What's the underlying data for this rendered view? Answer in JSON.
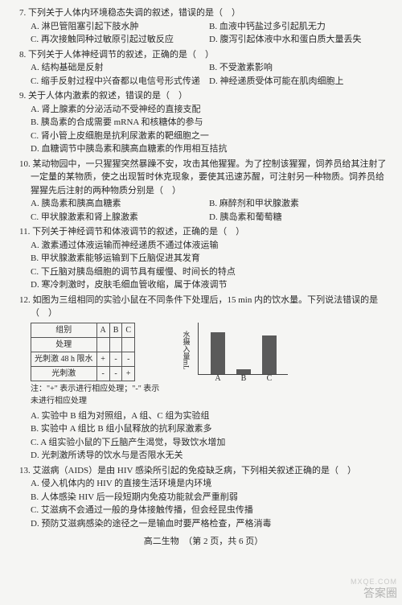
{
  "q7": {
    "stem": "7. 下列关于人体内环境稳态失调的叙述，错误的是（　）",
    "A": "A. 淋巴管阻塞引起下肢水肿",
    "B": "B. 血液中钙盐过多引起肌无力",
    "C": "C. 再次接触同种过敏原引起过敏反应",
    "D": "D. 腹泻引起体液中水和蛋白质大量丢失"
  },
  "q8": {
    "stem": "8. 下列关于人体神经调节的叙述，正确的是（　）",
    "A": "A. 结构基础是反射",
    "B": "B. 不受激素影响",
    "C": "C. 缩手反射过程中兴奋都以电信号形式传递",
    "D": "D. 神经递质受体可能在肌肉细胞上"
  },
  "q9": {
    "stem": "9. 关于人体内激素的叙述，错误的是（　）",
    "A": "A. 肾上腺素的分泌活动不受神经的直接支配",
    "B": "B. 胰岛素的合成需要 mRNA 和核糖体的参与",
    "C": "C. 肾小管上皮细胞是抗利尿激素的靶细胞之一",
    "D": "D. 血糖调节中胰岛素和胰高血糖素的作用相互拮抗"
  },
  "q10": {
    "stem": "10. 某动物园中，一只猩猩突然暴躁不安，攻击其他猩猩。为了控制该猩猩，饲养员给其注射了一定量的某物质，使之出现暂时休克现象，要使其迅速苏醒，可注射另一种物质。饲养员给猩猩先后注射的两种物质分别是（　）",
    "A": "A. 胰岛素和胰高血糖素",
    "B": "B. 麻醉剂和甲状腺激素",
    "C": "C. 甲状腺激素和肾上腺激素",
    "D": "D. 胰岛素和葡萄糖"
  },
  "q11": {
    "stem": "11. 下列关于神经调节和体液调节的叙述，正确的是（　）",
    "A": "A. 激素通过体液运输而神经递质不通过体液运输",
    "B": "B. 甲状腺激素能够运输到下丘脑促进其发育",
    "C": "C. 下丘脑对胰岛细胞的调节具有缓慢、时间长的特点",
    "D": "D. 寒冷刺激时，皮肤毛细血管收缩，属于体液调节"
  },
  "q12": {
    "stem": "12. 如图为三组相同的实验小鼠在不同条件下处理后，15 min 内的饮水量。下列说法错误的是（　）",
    "table": {
      "h0": "组别",
      "h1": "A",
      "h2": "B",
      "h3": "C",
      "r1c0": "处理",
      "r2c0": "光刺激 48 h 限水",
      "r2c1": "+",
      "r2c2": "-",
      "r2c3": "-",
      "r3c0": "光刺激",
      "r3c1": "-",
      "r3c2": "-",
      "r3c3": "+"
    },
    "note": "注：\"+\" 表示进行相应处理；\"-\" 表示未进行相应处理",
    "chart": {
      "ylabel": "水摄入量mL",
      "bars": {
        "A": {
          "h": 52,
          "x": 34,
          "color": "#5a5a5a"
        },
        "B": {
          "h": 6,
          "x": 66,
          "color": "#5a5a5a"
        },
        "C": {
          "h": 48,
          "x": 98,
          "color": "#5a5a5a"
        }
      }
    },
    "A": "A. 实验中 B 组为对照组，A 组、C 组为实验组",
    "B": "B. 实验中 A 组比 B 组小鼠释放的抗利尿激素多",
    "C": "C. A 组实验小鼠的下丘脑产生渴觉，导致饮水增加",
    "D": "D. 光刺激所诱导的饮水与是否限水无关"
  },
  "q13": {
    "stem": "13. 艾滋病（AIDS）是由 HIV 感染所引起的免疫缺乏病，下列相关叙述正确的是（　）",
    "A": "A. 侵入机体内的 HIV 的直接生活环境是内环境",
    "B": "B. 人体感染 HIV 后一段短期内免疫功能就会严重削弱",
    "C": "C. 艾滋病不会通过一般的身体接触传播，但会经昆虫传播",
    "D": "D. 预防艾滋病感染的途径之一是输血时要严格检查，严格消毒"
  },
  "footer": "高二生物　（第 2 页，共 6 页）",
  "wm1": "答案圈",
  "wm2": "MXQE.COM"
}
